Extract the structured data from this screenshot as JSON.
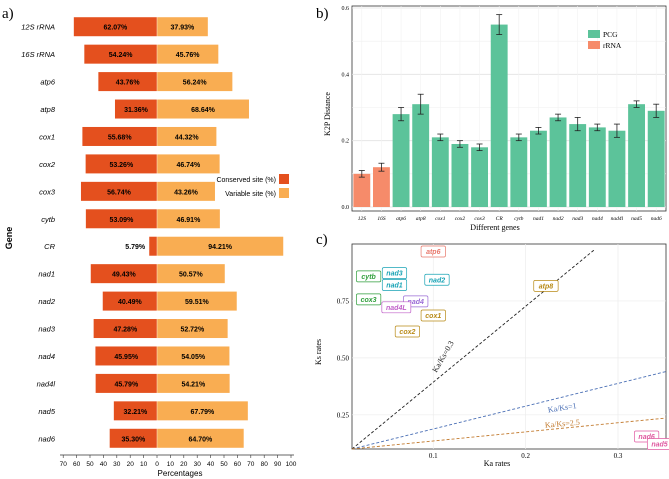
{
  "panels": {
    "a": "a)",
    "b": "b)",
    "c": "c)"
  },
  "chart_data": [
    {
      "panel": "a",
      "type": "bar",
      "orientation": "horizontal-diverging",
      "xlabel": "Percentages",
      "ylabel": "Gene",
      "xticks": [
        "70",
        "60",
        "50",
        "40",
        "30",
        "20",
        "10",
        "0",
        "10",
        "20",
        "30",
        "40",
        "50",
        "60",
        "70",
        "80",
        "90",
        "100"
      ],
      "legend": [
        {
          "name": "Conserved site (%)",
          "color": "#e4501e"
        },
        {
          "name": "Variable site (%)",
          "color": "#f9ad52"
        }
      ],
      "categories": [
        "12S rRNA",
        "16S rRNA",
        "atp6",
        "atp8",
        "cox1",
        "cox2",
        "cox3",
        "cytb",
        "CR",
        "nad1",
        "nad2",
        "nad3",
        "nad4",
        "nad4l",
        "nad5",
        "nad6"
      ],
      "series": [
        {
          "name": "Conserved site (%)",
          "values": [
            62.07,
            54.24,
            43.76,
            31.36,
            55.68,
            53.26,
            56.74,
            53.09,
            5.79,
            49.43,
            40.49,
            47.28,
            45.95,
            45.79,
            32.21,
            35.3
          ],
          "labels": [
            "62.07%",
            "54.24%",
            "43.76%",
            "31.36%",
            "55.68%",
            "53.26%",
            "56.74%",
            "53.09%",
            "5.79%",
            "49.43%",
            "40.49%",
            "47.28%",
            "45.95%",
            "45.79%",
            "32.21%",
            "35.30%"
          ]
        },
        {
          "name": "Variable site (%)",
          "values": [
            37.93,
            45.76,
            56.24,
            68.64,
            44.32,
            46.74,
            43.26,
            46.91,
            94.21,
            50.57,
            59.51,
            52.72,
            54.05,
            54.21,
            67.79,
            64.7
          ],
          "labels": [
            "37.93%",
            "45.76%",
            "56.24%",
            "68.64%",
            "44.32%",
            "46.74%",
            "43.26%",
            "46.91%",
            "94.21%",
            "50.57%",
            "59.51%",
            "52.72%",
            "54.05%",
            "54.21%",
            "67.79%",
            "64.70%"
          ]
        }
      ]
    },
    {
      "panel": "b",
      "type": "bar",
      "xlabel": "Different genes",
      "ylabel": "K2P Distance",
      "ylim": [
        0,
        0.6
      ],
      "yticks": [
        "0.0",
        "0.2",
        "0.4",
        "0.6"
      ],
      "legend": [
        {
          "name": "PCG",
          "color": "#5cc39a"
        },
        {
          "name": "rRNA",
          "color": "#f68b6a"
        }
      ],
      "categories": [
        "12S",
        "16S",
        "atp6",
        "atp8",
        "cox1",
        "cox2",
        "cox3",
        "CR",
        "cytb",
        "nad1",
        "nad2",
        "nad3",
        "nad4",
        "nad4l",
        "nad5",
        "nad6"
      ],
      "values": [
        0.1,
        0.12,
        0.28,
        0.31,
        0.21,
        0.19,
        0.18,
        0.55,
        0.21,
        0.23,
        0.27,
        0.25,
        0.24,
        0.23,
        0.31,
        0.29
      ],
      "errors": [
        0.01,
        0.012,
        0.02,
        0.03,
        0.01,
        0.01,
        0.01,
        0.03,
        0.01,
        0.01,
        0.01,
        0.02,
        0.01,
        0.02,
        0.01,
        0.02
      ],
      "group": [
        "rRNA",
        "rRNA",
        "PCG",
        "PCG",
        "PCG",
        "PCG",
        "PCG",
        "PCG",
        "PCG",
        "PCG",
        "PCG",
        "PCG",
        "PCG",
        "PCG",
        "PCG",
        "PCG"
      ]
    },
    {
      "panel": "c",
      "type": "scatter",
      "xlabel": "Ka rates",
      "ylabel": "Ks rates",
      "xlim": [
        0.012,
        0.352
      ],
      "ylim": [
        0.1,
        1.0
      ],
      "xticks": [
        "0.1",
        "0.2",
        "0.3"
      ],
      "yticks": [
        "0.25",
        "0.50",
        "0.75"
      ],
      "points": [
        {
          "name": "atp6",
          "x": 0.1,
          "y": 0.967,
          "color": "#e8776b"
        },
        {
          "name": "cytb",
          "x": 0.03,
          "y": 0.858,
          "color": "#2e9e3a"
        },
        {
          "name": "nad3",
          "x": 0.058,
          "y": 0.872,
          "color": "#18a3b5"
        },
        {
          "name": "nad1",
          "x": 0.058,
          "y": 0.82,
          "color": "#18a3b5"
        },
        {
          "name": "nad2",
          "x": 0.104,
          "y": 0.843,
          "color": "#18a3b5"
        },
        {
          "name": "atp8",
          "x": 0.222,
          "y": 0.816,
          "color": "#b88a16"
        },
        {
          "name": "cox3",
          "x": 0.03,
          "y": 0.757,
          "color": "#2e9e3a"
        },
        {
          "name": "nad4",
          "x": 0.081,
          "y": 0.748,
          "color": "#9a6bd6"
        },
        {
          "name": "nad4L",
          "x": 0.06,
          "y": 0.722,
          "color": "#c061c9"
        },
        {
          "name": "cox1",
          "x": 0.1,
          "y": 0.686,
          "color": "#b88a16"
        },
        {
          "name": "cox2",
          "x": 0.072,
          "y": 0.616,
          "color": "#b88a16"
        },
        {
          "name": "nad6",
          "x": 0.331,
          "y": 0.155,
          "color": "#e05aa1"
        },
        {
          "name": "nad5",
          "x": 0.345,
          "y": 0.122,
          "color": "#e05aa1"
        }
      ],
      "lines": [
        {
          "label": "Ka/Ks=0.3",
          "slope": 3.333,
          "color": "#222222",
          "x_end": 0.275,
          "label_x": 0.113,
          "label_y": 0.5,
          "label_angle": -60
        },
        {
          "label": "Ka/Ks=1",
          "slope": 1.0,
          "color": "#4a6fb5",
          "x_end": 0.352,
          "label_x": 0.24,
          "label_y": 0.27,
          "label_angle": -9
        },
        {
          "label": "Ka/Ks=2.5",
          "slope": 0.4,
          "color": "#c27a2e",
          "x_end": 0.352,
          "label_x": 0.24,
          "label_y": 0.2,
          "label_angle": -5
        }
      ]
    }
  ]
}
